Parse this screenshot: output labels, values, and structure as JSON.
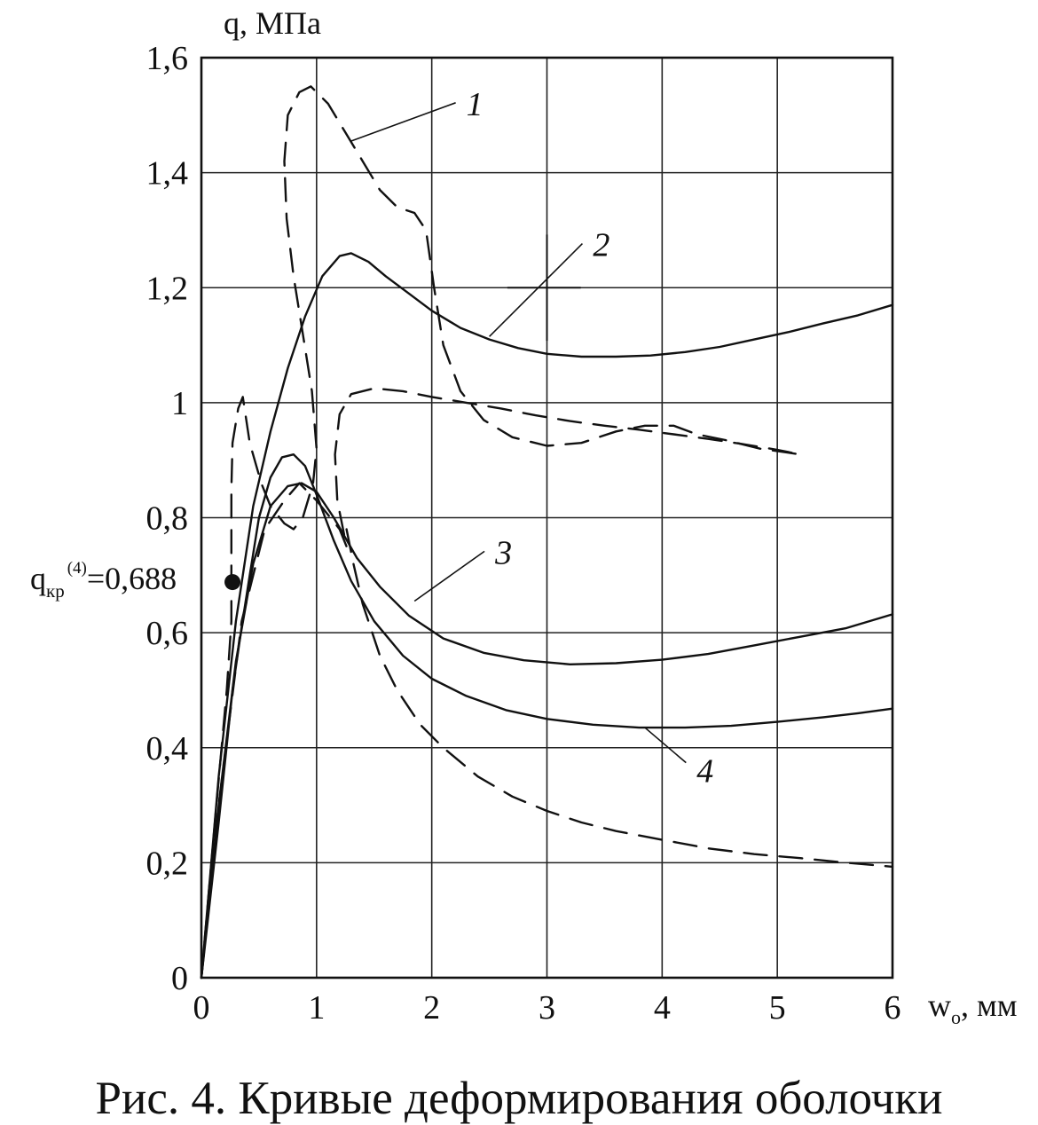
{
  "figure": {
    "caption": "Рис. 4. Кривые деформирования оболочки"
  },
  "chart_data": {
    "type": "line",
    "ylabel": "q, МПа",
    "xlabel": "w",
    "xlabel_subscript": "o",
    "xlabel_unit": ", мм",
    "xlim": [
      0,
      6
    ],
    "ylim": [
      0,
      1.6
    ],
    "x_ticks": [
      {
        "value": 0,
        "label": "0"
      },
      {
        "value": 1,
        "label": "1"
      },
      {
        "value": 2,
        "label": "2"
      },
      {
        "value": 3,
        "label": "3"
      },
      {
        "value": 4,
        "label": "4"
      },
      {
        "value": 5,
        "label": "5"
      },
      {
        "value": 6,
        "label": "6"
      }
    ],
    "y_ticks": [
      {
        "value": 0,
        "label": "0"
      },
      {
        "value": 0.2,
        "label": "0,2"
      },
      {
        "value": 0.4,
        "label": "0,4"
      },
      {
        "value": 0.6,
        "label": "0,6"
      },
      {
        "value": 0.8,
        "label": "0,8"
      },
      {
        "value": 1.0,
        "label": "1"
      },
      {
        "value": 1.2,
        "label": "1,2"
      },
      {
        "value": 1.4,
        "label": "1,4"
      },
      {
        "value": 1.6,
        "label": "1,6"
      }
    ],
    "grid": true,
    "critical_point": {
      "x": 0.27,
      "y": 0.688,
      "label_main": "q",
      "label_sub": "кр",
      "label_sup": "(4)",
      "label_value": "=0,688"
    },
    "series": [
      {
        "name": "1",
        "style": "dashed",
        "points": [
          [
            0,
            0
          ],
          [
            0.13,
            0.3
          ],
          [
            0.22,
            0.5
          ],
          [
            0.26,
            0.62
          ],
          [
            0.26,
            0.72
          ],
          [
            0.26,
            0.85
          ],
          [
            0.27,
            0.93
          ],
          [
            0.32,
            0.99
          ],
          [
            0.36,
            1.01
          ],
          [
            0.42,
            0.93
          ],
          [
            0.52,
            0.86
          ],
          [
            0.6,
            0.82
          ],
          [
            0.72,
            0.79
          ],
          [
            0.8,
            0.78
          ],
          [
            0.88,
            0.8
          ],
          [
            0.97,
            0.86
          ],
          [
            1.0,
            0.92
          ],
          [
            0.96,
            1.02
          ],
          [
            0.88,
            1.12
          ],
          [
            0.8,
            1.22
          ],
          [
            0.74,
            1.32
          ],
          [
            0.72,
            1.42
          ],
          [
            0.75,
            1.5
          ],
          [
            0.85,
            1.54
          ],
          [
            0.95,
            1.55
          ],
          [
            1.1,
            1.52
          ],
          [
            1.25,
            1.47
          ],
          [
            1.4,
            1.42
          ],
          [
            1.55,
            1.37
          ],
          [
            1.7,
            1.34
          ],
          [
            1.85,
            1.33
          ],
          [
            1.95,
            1.3
          ],
          [
            2.02,
            1.2
          ],
          [
            2.1,
            1.1
          ],
          [
            2.25,
            1.02
          ],
          [
            2.45,
            0.97
          ],
          [
            2.7,
            0.94
          ],
          [
            3.0,
            0.925
          ],
          [
            3.3,
            0.93
          ],
          [
            3.6,
            0.95
          ],
          [
            3.85,
            0.96
          ],
          [
            4.1,
            0.96
          ],
          [
            4.3,
            0.945
          ],
          [
            4.55,
            0.935
          ],
          [
            4.85,
            0.92
          ],
          [
            5.2,
            0.91
          ]
        ]
      },
      {
        "name": "2",
        "style": "solid",
        "points": [
          [
            0,
            0
          ],
          [
            0.15,
            0.35
          ],
          [
            0.3,
            0.62
          ],
          [
            0.45,
            0.82
          ],
          [
            0.6,
            0.95
          ],
          [
            0.75,
            1.06
          ],
          [
            0.9,
            1.15
          ],
          [
            1.05,
            1.22
          ],
          [
            1.2,
            1.255
          ],
          [
            1.3,
            1.26
          ],
          [
            1.45,
            1.245
          ],
          [
            1.6,
            1.22
          ],
          [
            1.8,
            1.19
          ],
          [
            2.0,
            1.16
          ],
          [
            2.25,
            1.13
          ],
          [
            2.5,
            1.11
          ],
          [
            2.75,
            1.095
          ],
          [
            3.0,
            1.085
          ],
          [
            3.3,
            1.08
          ],
          [
            3.6,
            1.08
          ],
          [
            3.9,
            1.082
          ],
          [
            4.2,
            1.088
          ],
          [
            4.5,
            1.097
          ],
          [
            4.8,
            1.11
          ],
          [
            5.1,
            1.123
          ],
          [
            5.4,
            1.138
          ],
          [
            5.7,
            1.152
          ],
          [
            6.0,
            1.17
          ]
        ]
      },
      {
        "name": "3",
        "style": "solid",
        "points": [
          [
            0,
            0
          ],
          [
            0.15,
            0.3
          ],
          [
            0.3,
            0.55
          ],
          [
            0.45,
            0.72
          ],
          [
            0.6,
            0.82
          ],
          [
            0.75,
            0.855
          ],
          [
            0.87,
            0.86
          ],
          [
            1.0,
            0.845
          ],
          [
            1.15,
            0.8
          ],
          [
            1.35,
            0.73
          ],
          [
            1.55,
            0.68
          ],
          [
            1.8,
            0.63
          ],
          [
            2.1,
            0.59
          ],
          [
            2.45,
            0.565
          ],
          [
            2.8,
            0.552
          ],
          [
            3.2,
            0.545
          ],
          [
            3.6,
            0.547
          ],
          [
            4.0,
            0.553
          ],
          [
            4.4,
            0.563
          ],
          [
            4.8,
            0.578
          ],
          [
            5.2,
            0.593
          ],
          [
            5.6,
            0.608
          ],
          [
            6.0,
            0.632
          ]
        ]
      },
      {
        "name": "4",
        "style": "solid",
        "points": [
          [
            0,
            0
          ],
          [
            0.15,
            0.27
          ],
          [
            0.27,
            0.5
          ],
          [
            0.35,
            0.61
          ],
          [
            0.42,
            0.7
          ],
          [
            0.5,
            0.8
          ],
          [
            0.6,
            0.87
          ],
          [
            0.7,
            0.905
          ],
          [
            0.8,
            0.91
          ],
          [
            0.9,
            0.89
          ],
          [
            1.0,
            0.84
          ],
          [
            1.15,
            0.76
          ],
          [
            1.3,
            0.69
          ],
          [
            1.5,
            0.62
          ],
          [
            1.75,
            0.56
          ],
          [
            2.0,
            0.52
          ],
          [
            2.3,
            0.49
          ],
          [
            2.65,
            0.465
          ],
          [
            3.0,
            0.45
          ],
          [
            3.4,
            0.44
          ],
          [
            3.8,
            0.435
          ],
          [
            4.2,
            0.435
          ],
          [
            4.6,
            0.438
          ],
          [
            5.0,
            0.445
          ],
          [
            5.4,
            0.453
          ],
          [
            5.7,
            0.46
          ],
          [
            6.0,
            0.468
          ]
        ]
      },
      {
        "name": "",
        "style": "dashed",
        "points": [
          [
            0,
            0
          ],
          [
            0.15,
            0.3
          ],
          [
            0.35,
            0.62
          ],
          [
            0.55,
            0.78
          ],
          [
            0.72,
            0.83
          ],
          [
            0.85,
            0.86
          ],
          [
            1.0,
            0.83
          ],
          [
            1.12,
            0.8
          ],
          [
            1.2,
            0.78
          ],
          [
            1.26,
            0.75
          ],
          [
            1.18,
            0.83
          ],
          [
            1.16,
            0.91
          ],
          [
            1.2,
            0.98
          ],
          [
            1.3,
            1.015
          ],
          [
            1.5,
            1.025
          ],
          [
            1.75,
            1.02
          ],
          [
            2.0,
            1.01
          ],
          [
            2.3,
            1.0
          ],
          [
            2.6,
            0.99
          ],
          [
            2.9,
            0.978
          ],
          [
            3.2,
            0.968
          ],
          [
            3.5,
            0.96
          ],
          [
            3.8,
            0.953
          ],
          [
            4.1,
            0.945
          ],
          [
            4.4,
            0.937
          ],
          [
            4.7,
            0.928
          ],
          [
            5.0,
            0.918
          ],
          [
            5.2,
            0.91
          ]
        ]
      },
      {
        "name": "",
        "style": "dashed",
        "points": [
          [
            1.26,
            0.78
          ],
          [
            1.32,
            0.72
          ],
          [
            1.4,
            0.65
          ],
          [
            1.55,
            0.56
          ],
          [
            1.7,
            0.5
          ],
          [
            1.9,
            0.44
          ],
          [
            2.1,
            0.4
          ],
          [
            2.4,
            0.35
          ],
          [
            2.7,
            0.315
          ],
          [
            3.0,
            0.29
          ],
          [
            3.3,
            0.27
          ],
          [
            3.6,
            0.255
          ],
          [
            4.0,
            0.24
          ],
          [
            4.4,
            0.225
          ],
          [
            4.8,
            0.215
          ],
          [
            5.2,
            0.208
          ],
          [
            5.6,
            0.2
          ],
          [
            6.0,
            0.193
          ]
        ]
      }
    ],
    "curve_labels": [
      {
        "text": "1",
        "x": 2.3,
        "y": 1.5,
        "tx": 1.3,
        "ty": 1.455
      },
      {
        "text": "2",
        "x": 3.4,
        "y": 1.255,
        "tx": 2.5,
        "ty": 1.115
      },
      {
        "text": "3",
        "x": 2.55,
        "y": 0.72,
        "tx": 1.85,
        "ty": 0.655
      },
      {
        "text": "4",
        "x": 4.3,
        "y": 0.34,
        "tx": 3.85,
        "ty": 0.435
      }
    ],
    "crosshair": {
      "x": 3.0,
      "y": 1.2,
      "dx": 0.55,
      "dy": 0.12
    }
  }
}
